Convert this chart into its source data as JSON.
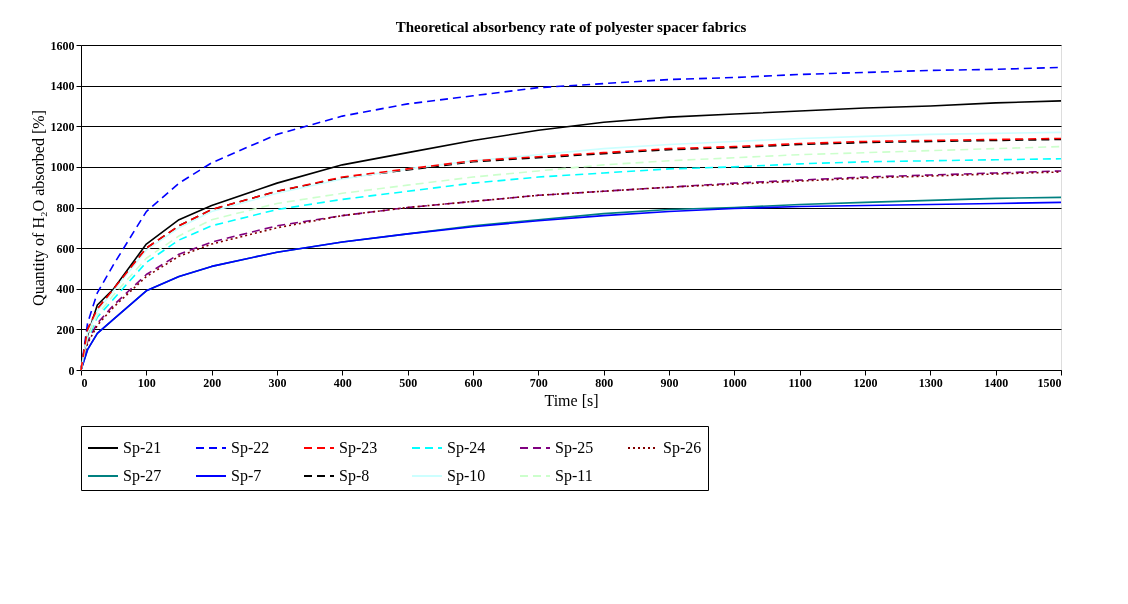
{
  "chart_data": {
    "type": "line",
    "title": "Theoretical absorbency rate of polyester spacer fabrics",
    "xlabel": "Time [s]",
    "ylabel": "Quantity of H₂O absorbed [%]",
    "x": [
      0,
      10,
      25,
      50,
      100,
      150,
      200,
      300,
      400,
      500,
      600,
      700,
      800,
      900,
      1000,
      1100,
      1200,
      1300,
      1400,
      1500
    ],
    "xlim": [
      0,
      1500
    ],
    "xticks": [
      0,
      100,
      200,
      300,
      400,
      500,
      600,
      700,
      800,
      900,
      1000,
      1100,
      1200,
      1300,
      1400,
      1500
    ],
    "ylim": [
      0,
      1600
    ],
    "yticks": [
      0,
      200,
      400,
      600,
      800,
      1000,
      1200,
      1400,
      1600
    ],
    "grid": "y",
    "legend": "bottom",
    "marker": "none",
    "series": [
      {
        "name": "Sp-21",
        "color": "#000000",
        "line_style": "solid",
        "values": [
          0,
          170,
          320,
          400,
          620,
          740,
          810,
          920,
          1010,
          1070,
          1130,
          1180,
          1220,
          1245,
          1260,
          1275,
          1290,
          1300,
          1315,
          1325
        ]
      },
      {
        "name": "Sp-22",
        "color": "#0000ff",
        "line_style": "dashed",
        "values": [
          0,
          230,
          380,
          520,
          780,
          920,
          1020,
          1160,
          1250,
          1310,
          1350,
          1390,
          1410,
          1430,
          1440,
          1455,
          1465,
          1475,
          1480,
          1490
        ]
      },
      {
        "name": "Sp-23",
        "color": "#ff0000",
        "line_style": "dashed",
        "values": [
          0,
          200,
          300,
          400,
          600,
          710,
          790,
          880,
          950,
          990,
          1030,
          1050,
          1070,
          1090,
          1100,
          1115,
          1125,
          1130,
          1135,
          1140
        ]
      },
      {
        "name": "Sp-24",
        "color": "#00ffff",
        "line_style": "dashed",
        "values": [
          0,
          150,
          260,
          350,
          530,
          640,
          710,
          790,
          840,
          880,
          920,
          950,
          970,
          990,
          1000,
          1015,
          1025,
          1030,
          1035,
          1040
        ]
      },
      {
        "name": "Sp-25",
        "color": "#800080",
        "line_style": "dashed",
        "values": [
          0,
          140,
          230,
          320,
          470,
          570,
          630,
          710,
          760,
          800,
          830,
          860,
          880,
          900,
          920,
          935,
          950,
          960,
          970,
          980
        ]
      },
      {
        "name": "Sp-26",
        "color": "#800000",
        "line_style": "dotted",
        "values": [
          0,
          130,
          220,
          310,
          460,
          560,
          620,
          700,
          760,
          800,
          830,
          860,
          880,
          900,
          915,
          930,
          945,
          955,
          965,
          975
        ]
      },
      {
        "name": "Sp-27",
        "color": "#008080",
        "line_style": "solid",
        "values": [
          0,
          100,
          180,
          250,
          390,
          460,
          510,
          580,
          630,
          670,
          710,
          740,
          770,
          790,
          800,
          815,
          825,
          835,
          845,
          850
        ]
      },
      {
        "name": "Sp-7",
        "color": "#0000ff",
        "line_style": "solid",
        "values": [
          0,
          100,
          180,
          250,
          390,
          460,
          510,
          580,
          630,
          670,
          705,
          735,
          760,
          780,
          795,
          805,
          810,
          815,
          820,
          825
        ]
      },
      {
        "name": "Sp-8",
        "color": "#000000",
        "line_style": "dashed",
        "values": [
          0,
          200,
          300,
          400,
          600,
          710,
          790,
          880,
          945,
          985,
          1025,
          1045,
          1065,
          1085,
          1095,
          1110,
          1120,
          1125,
          1130,
          1135
        ]
      },
      {
        "name": "Sp-10",
        "color": "#ccffff",
        "line_style": "solid",
        "values": [
          0,
          180,
          290,
          390,
          590,
          700,
          780,
          870,
          940,
          990,
          1030,
          1060,
          1090,
          1110,
          1125,
          1140,
          1150,
          1160,
          1165,
          1170
        ]
      },
      {
        "name": "Sp-11",
        "color": "#ccffcc",
        "line_style": "dashed",
        "values": [
          0,
          160,
          270,
          370,
          550,
          660,
          740,
          820,
          870,
          910,
          950,
          980,
          1010,
          1030,
          1045,
          1060,
          1070,
          1080,
          1090,
          1100
        ]
      }
    ]
  }
}
